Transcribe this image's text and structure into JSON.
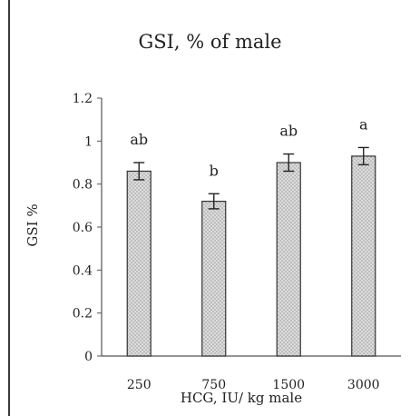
{
  "chart_data": {
    "type": "bar",
    "title": "GSI, % of male",
    "xlabel": "HCG, IU/  kg male",
    "ylabel": "GSI %",
    "categories": [
      "250",
      "750",
      "1500",
      "3000"
    ],
    "values": [
      0.86,
      0.72,
      0.9,
      0.93
    ],
    "errors": [
      0.04,
      0.035,
      0.04,
      0.04
    ],
    "labels": [
      "ab",
      "b",
      "ab",
      "a"
    ],
    "ylim": [
      0,
      1.2
    ],
    "yticks": [
      0,
      0.2,
      0.4,
      0.6,
      0.8,
      1,
      1.2
    ],
    "ytick_labels": [
      "0",
      "0.2",
      "0.4",
      "0.6",
      "0.8",
      "1",
      "1.2"
    ],
    "grid": false,
    "bar_fill": "#d6d6d6",
    "bar_edge": "#333333"
  }
}
